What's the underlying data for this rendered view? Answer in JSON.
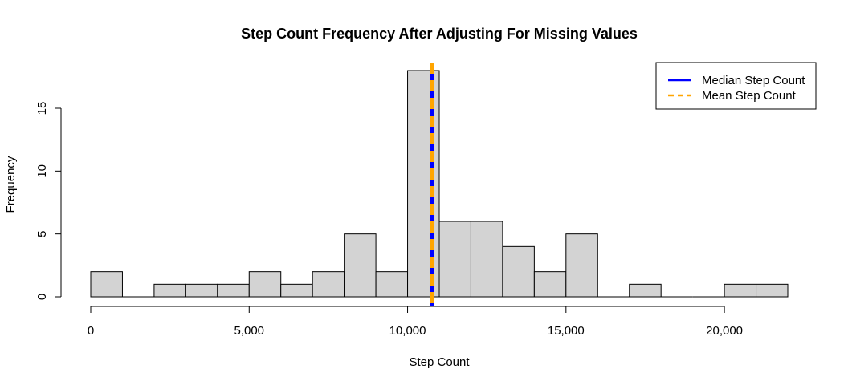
{
  "chart_data": {
    "type": "bar",
    "title": "Step Count Frequency After Adjusting For Missing Values",
    "xlabel": "Step Count",
    "ylabel": "Frequency",
    "bin_width": 1000,
    "bins": [
      {
        "start": 0,
        "end": 1000,
        "count": 2
      },
      {
        "start": 1000,
        "end": 2000,
        "count": 0
      },
      {
        "start": 2000,
        "end": 3000,
        "count": 1
      },
      {
        "start": 3000,
        "end": 4000,
        "count": 1
      },
      {
        "start": 4000,
        "end": 5000,
        "count": 1
      },
      {
        "start": 5000,
        "end": 6000,
        "count": 2
      },
      {
        "start": 6000,
        "end": 7000,
        "count": 1
      },
      {
        "start": 7000,
        "end": 8000,
        "count": 2
      },
      {
        "start": 8000,
        "end": 9000,
        "count": 5
      },
      {
        "start": 9000,
        "end": 10000,
        "count": 2
      },
      {
        "start": 10000,
        "end": 11000,
        "count": 18
      },
      {
        "start": 11000,
        "end": 12000,
        "count": 6
      },
      {
        "start": 12000,
        "end": 13000,
        "count": 6
      },
      {
        "start": 13000,
        "end": 14000,
        "count": 4
      },
      {
        "start": 14000,
        "end": 15000,
        "count": 2
      },
      {
        "start": 15000,
        "end": 16000,
        "count": 5
      },
      {
        "start": 16000,
        "end": 17000,
        "count": 0
      },
      {
        "start": 17000,
        "end": 18000,
        "count": 1
      },
      {
        "start": 18000,
        "end": 19000,
        "count": 0
      },
      {
        "start": 19000,
        "end": 20000,
        "count": 0
      },
      {
        "start": 20000,
        "end": 21000,
        "count": 1
      },
      {
        "start": 21000,
        "end": 22000,
        "count": 1
      }
    ],
    "xlim": [
      0,
      22000
    ],
    "ylim": [
      0,
      18
    ],
    "x_ticks": [
      {
        "value": 0,
        "label": "0"
      },
      {
        "value": 5000,
        "label": "5,000"
      },
      {
        "value": 10000,
        "label": "10,000"
      },
      {
        "value": 15000,
        "label": "15,000"
      },
      {
        "value": 20000,
        "label": "20,000"
      }
    ],
    "y_ticks": [
      {
        "value": 0,
        "label": "0"
      },
      {
        "value": 5,
        "label": "5"
      },
      {
        "value": 10,
        "label": "10"
      },
      {
        "value": 15,
        "label": "15"
      }
    ],
    "reference_lines": [
      {
        "name": "Median Step Count",
        "value": 10766,
        "color": "#0000ff",
        "style": "solid"
      },
      {
        "name": "Mean Step Count",
        "value": 10766,
        "color": "#ffa500",
        "style": "dashed"
      }
    ],
    "bar_fill": "#d3d3d3",
    "bar_stroke": "#000000",
    "grid": false,
    "legend": {
      "position": "top-right",
      "entries": [
        {
          "label": "Median Step Count",
          "color": "#0000ff",
          "style": "solid"
        },
        {
          "label": "Mean Step Count",
          "color": "#ffa500",
          "style": "dashed"
        }
      ]
    }
  }
}
